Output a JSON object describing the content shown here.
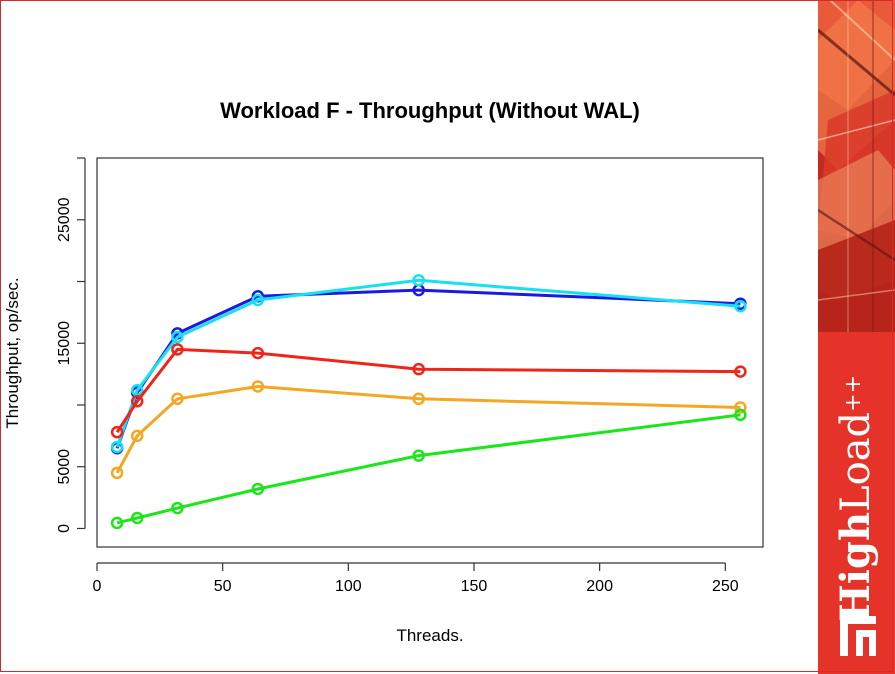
{
  "chart_data": {
    "type": "line",
    "title": "Workload F - Throughput (Without WAL)",
    "xlabel": "Threads.",
    "ylabel": "Throughput, op/sec.",
    "xlim": [
      0,
      265
    ],
    "ylim": [
      -1500,
      30000
    ],
    "x_ticks": [
      0,
      50,
      100,
      150,
      200,
      250
    ],
    "y_ticks": [
      0,
      5000,
      15000,
      25000
    ],
    "y_tick_labels": [
      "0",
      "5000",
      "15000",
      "25000"
    ],
    "grid": false,
    "legend": "none",
    "series": [
      {
        "color": "#1a1ae6",
        "x": [
          8,
          16,
          32,
          64,
          128,
          256
        ],
        "y": [
          6500,
          11000,
          15800,
          18800,
          19300,
          18200
        ]
      },
      {
        "color": "#18e0f0",
        "x": [
          8,
          16,
          32,
          64,
          128,
          256
        ],
        "y": [
          6600,
          11200,
          15500,
          18500,
          20100,
          18000
        ]
      },
      {
        "color": "#f0251a",
        "x": [
          8,
          16,
          32,
          64,
          128,
          256
        ],
        "y": [
          7800,
          10300,
          14500,
          14200,
          12900,
          12700
        ]
      },
      {
        "color": "#f5a623",
        "x": [
          8,
          16,
          32,
          64,
          128,
          256
        ],
        "y": [
          4500,
          7500,
          10500,
          11500,
          10500,
          9800
        ]
      },
      {
        "color": "#1ae61a",
        "x": [
          8,
          16,
          32,
          64,
          128,
          256
        ],
        "y": [
          450,
          850,
          1650,
          3200,
          5900,
          9200
        ]
      }
    ]
  },
  "branding": {
    "high": "High",
    "load": "Load",
    "plus": "++",
    "accent": "#e5332a"
  }
}
